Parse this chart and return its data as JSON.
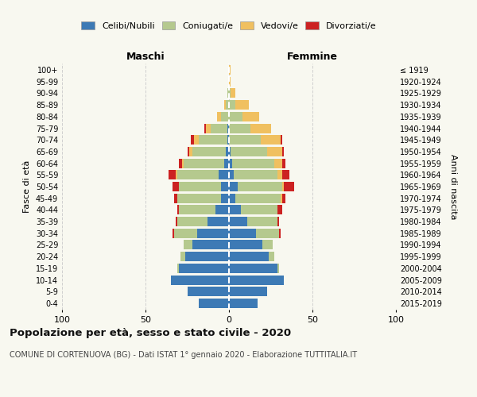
{
  "age_groups": [
    "0-4",
    "5-9",
    "10-14",
    "15-19",
    "20-24",
    "25-29",
    "30-34",
    "35-39",
    "40-44",
    "45-49",
    "50-54",
    "55-59",
    "60-64",
    "65-69",
    "70-74",
    "75-79",
    "80-84",
    "85-89",
    "90-94",
    "95-99",
    "100+"
  ],
  "birth_years": [
    "2015-2019",
    "2010-2014",
    "2005-2009",
    "2000-2004",
    "1995-1999",
    "1990-1994",
    "1985-1989",
    "1980-1984",
    "1975-1979",
    "1970-1974",
    "1965-1969",
    "1960-1964",
    "1955-1959",
    "1950-1954",
    "1945-1949",
    "1940-1944",
    "1935-1939",
    "1930-1934",
    "1925-1929",
    "1920-1924",
    "≤ 1919"
  ],
  "colors": {
    "celibi": "#3d7ab5",
    "coniugati": "#b5c98e",
    "vedovi": "#f0c060",
    "divorziati": "#cc2222"
  },
  "males": {
    "celibi": [
      18,
      25,
      35,
      30,
      26,
      22,
      19,
      13,
      8,
      5,
      5,
      6,
      3,
      2,
      1,
      1,
      0,
      0,
      0,
      0,
      0
    ],
    "coniugati": [
      0,
      0,
      0,
      1,
      3,
      5,
      14,
      18,
      22,
      26,
      25,
      25,
      24,
      20,
      17,
      10,
      5,
      2,
      1,
      0,
      0
    ],
    "vedovi": [
      0,
      0,
      0,
      0,
      0,
      0,
      0,
      0,
      0,
      0,
      0,
      1,
      1,
      2,
      3,
      3,
      2,
      1,
      0,
      0,
      0
    ],
    "divorziati": [
      0,
      0,
      0,
      0,
      0,
      0,
      1,
      1,
      1,
      2,
      4,
      4,
      2,
      1,
      2,
      1,
      0,
      0,
      0,
      0,
      0
    ]
  },
  "females": {
    "celibi": [
      17,
      23,
      33,
      29,
      24,
      20,
      16,
      11,
      7,
      4,
      5,
      3,
      2,
      1,
      0,
      0,
      0,
      0,
      0,
      0,
      0
    ],
    "coniugati": [
      0,
      0,
      0,
      1,
      3,
      6,
      14,
      18,
      22,
      27,
      27,
      26,
      25,
      22,
      19,
      13,
      8,
      4,
      1,
      0,
      0
    ],
    "vedovi": [
      0,
      0,
      0,
      0,
      0,
      0,
      0,
      0,
      0,
      1,
      1,
      3,
      5,
      9,
      12,
      12,
      10,
      8,
      3,
      1,
      1
    ],
    "divorziati": [
      0,
      0,
      0,
      0,
      0,
      0,
      1,
      1,
      3,
      2,
      6,
      4,
      2,
      1,
      1,
      0,
      0,
      0,
      0,
      0,
      0
    ]
  },
  "title": "Popolazione per età, sesso e stato civile - 2020",
  "subtitle": "COMUNE DI CORTENUOVA (BG) - Dati ISTAT 1° gennaio 2020 - Elaborazione TUTTITALIA.IT",
  "xlabel_left": "Maschi",
  "xlabel_right": "Femmine",
  "ylabel_left": "Fasce di età",
  "ylabel_right": "Anni di nascita",
  "xlim": 100,
  "bg_color": "#f8f8f0",
  "grid_color": "#cccccc",
  "legend_labels": [
    "Celibi/Nubili",
    "Coniugati/e",
    "Vedovi/e",
    "Divorziati/e"
  ]
}
